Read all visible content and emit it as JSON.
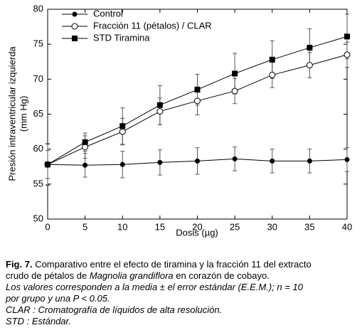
{
  "chart_data": {
    "type": "line",
    "x_label": "Dosis (µg)",
    "y_label": [
      "Presión intraventricular izquierda",
      "(mm Hg)"
    ],
    "x": [
      0,
      5,
      10,
      15,
      20,
      25,
      30,
      35,
      40
    ],
    "series": [
      {
        "name": "Control",
        "color": "#000000",
        "marker": "filled-circle",
        "values": [
          57.8,
          57.7,
          57.8,
          58.1,
          58.3,
          58.6,
          58.3,
          58.3,
          58.5
        ],
        "errors": [
          3.0,
          1.7,
          1.9,
          1.8,
          1.9,
          1.7,
          1.7,
          1.7,
          1.7
        ]
      },
      {
        "name": "Fracción 11 (pétalos) / CLAR",
        "color": "#000000",
        "marker": "open-circle",
        "values": [
          57.8,
          60.3,
          62.5,
          65.4,
          66.9,
          68.3,
          70.6,
          72.0,
          73.5
        ],
        "errors": [
          2.0,
          1.6,
          1.9,
          1.9,
          2.0,
          1.8,
          1.8,
          1.8,
          1.8
        ]
      },
      {
        "name": "STD Tiramina",
        "color": "#000000",
        "marker": "filled-square",
        "values": [
          57.8,
          61.0,
          63.3,
          66.3,
          68.5,
          70.8,
          72.8,
          74.5,
          76.1
        ],
        "errors": [
          2.9,
          1.3,
          2.6,
          2.8,
          2.2,
          2.9,
          2.7,
          2.7,
          3.2
        ]
      }
    ],
    "xlim": [
      0,
      40
    ],
    "xticks": [
      0,
      5,
      10,
      15,
      20,
      25,
      30,
      35,
      40
    ],
    "ylim": [
      50,
      80
    ],
    "yticks": [
      50,
      55,
      60,
      65,
      70,
      75,
      80
    ],
    "legend": "upper-left"
  },
  "caption": {
    "label": "Fig. 7.",
    "line_1": "Comparativo entre el efecto de tiramina y la fracción 11 del extracto",
    "line_2": "crudo de pétalos de",
    "species": "Magnolia grandiflora",
    "line_2_end": "en corazón de cobayo.",
    "note_1": "Los valores corresponden a la media ± el error estándar (E.E.M.); n = 10",
    "note_2": "por grupo y una P < 0.05.",
    "note_3": "CLAR : Cromatografía de líquidos de alta resolución.",
    "note_4": "STD : Estándar."
  }
}
